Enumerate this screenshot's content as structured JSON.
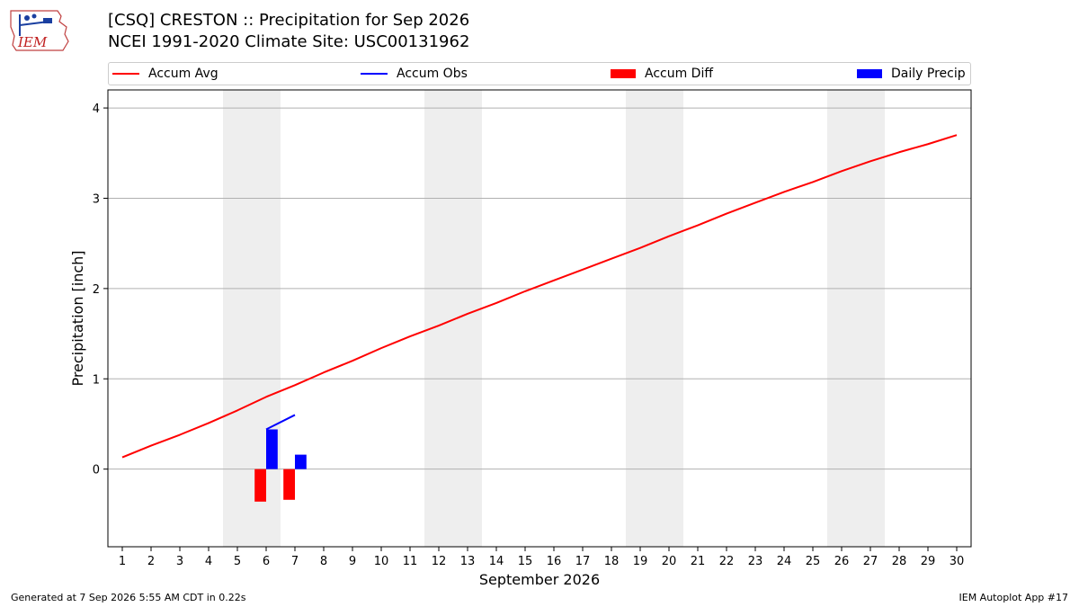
{
  "header": {
    "title_line1": "[CSQ] CRESTON :: Precipitation for Sep 2026",
    "title_line2": "NCEI 1991-2020 Climate Site: USC00131962",
    "logo_text": "IEM"
  },
  "legend": {
    "items": [
      {
        "label": "Accum Avg",
        "kind": "line",
        "color": "#ff0000"
      },
      {
        "label": "Accum Obs",
        "kind": "line",
        "color": "#0000ff"
      },
      {
        "label": "Accum Diff",
        "kind": "box",
        "color": "#ff0000"
      },
      {
        "label": "Daily Precip",
        "kind": "box",
        "color": "#0000ff"
      }
    ]
  },
  "footer": {
    "generated": "Generated at 7 Sep 2026 5:55 AM CDT in 0.22s",
    "app": "IEM Autoplot App #17"
  },
  "chart_data": {
    "type": "bar",
    "title": "[CSQ] CRESTON :: Precipitation for Sep 2026",
    "xlabel": "September 2026",
    "ylabel": "Precipitation [inch]",
    "x": [
      1,
      2,
      3,
      4,
      5,
      6,
      7,
      8,
      9,
      10,
      11,
      12,
      13,
      14,
      15,
      16,
      17,
      18,
      19,
      20,
      21,
      22,
      23,
      24,
      25,
      26,
      27,
      28,
      29,
      30
    ],
    "xlim": [
      0.5,
      30.5
    ],
    "ylim": [
      -0.86,
      4.2
    ],
    "yticks": [
      0,
      1,
      2,
      3,
      4
    ],
    "grid": "horizontal",
    "legend_position": "top",
    "weekend_shading": [
      [
        5,
        6
      ],
      [
        12,
        13
      ],
      [
        19,
        20
      ],
      [
        26,
        27
      ]
    ],
    "series": [
      {
        "name": "Accum Avg",
        "type": "line",
        "color": "#ff0000",
        "x": [
          1,
          2,
          3,
          4,
          5,
          6,
          7,
          8,
          9,
          10,
          11,
          12,
          13,
          14,
          15,
          16,
          17,
          18,
          19,
          20,
          21,
          22,
          23,
          24,
          25,
          26,
          27,
          28,
          29,
          30
        ],
        "values": [
          0.13,
          0.26,
          0.38,
          0.51,
          0.65,
          0.8,
          0.93,
          1.07,
          1.2,
          1.34,
          1.47,
          1.59,
          1.72,
          1.84,
          1.97,
          2.09,
          2.21,
          2.33,
          2.45,
          2.58,
          2.7,
          2.83,
          2.95,
          3.07,
          3.18,
          3.3,
          3.41,
          3.51,
          3.6,
          3.7
        ]
      },
      {
        "name": "Accum Obs",
        "type": "line",
        "color": "#0000ff",
        "x": [
          6,
          7
        ],
        "values": [
          0.44,
          0.6
        ]
      },
      {
        "name": "Accum Diff",
        "type": "bar",
        "color": "#ff0000",
        "offset": -0.2,
        "x": [
          6,
          7
        ],
        "values": [
          -0.36,
          -0.34
        ]
      },
      {
        "name": "Daily Precip",
        "type": "bar",
        "color": "#0000ff",
        "offset": 0.2,
        "x": [
          6,
          7
        ],
        "values": [
          0.44,
          0.16
        ]
      }
    ]
  }
}
